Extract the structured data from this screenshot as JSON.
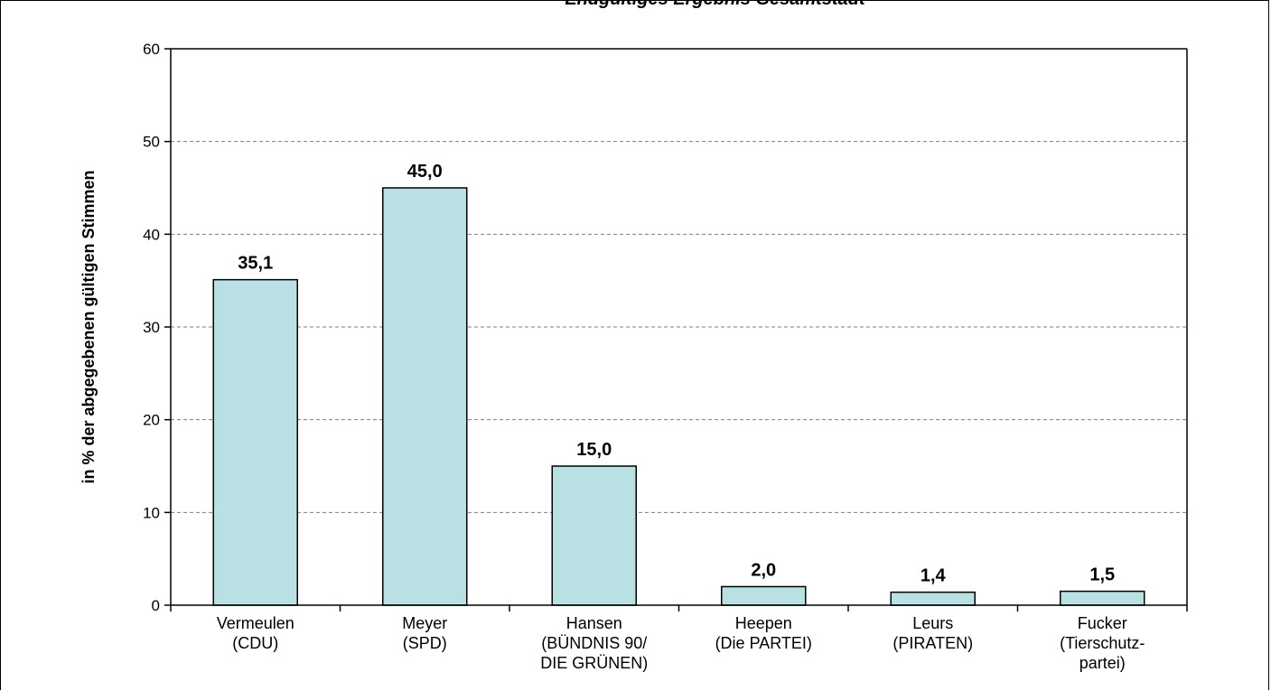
{
  "chart_data": {
    "type": "bar",
    "title": "Endgültiges Ergebnis Gesamtstadt",
    "ylabel": "in % der abgegebenen gültigen Stimmen",
    "xlabel": "",
    "ylim": [
      0,
      60
    ],
    "yticks": [
      0,
      10,
      20,
      30,
      40,
      50,
      60
    ],
    "grid": true,
    "legend": "none",
    "bar_color": "#b9e0e3",
    "categories": [
      [
        "Vermeulen",
        "(CDU)"
      ],
      [
        "Meyer",
        "(SPD)"
      ],
      [
        "Hansen",
        "(BÜNDNIS 90/",
        "DIE GRÜNEN)"
      ],
      [
        "Heepen",
        "(Die PARTEI)"
      ],
      [
        "Leurs",
        "(PIRATEN)"
      ],
      [
        "Fucker",
        "(Tierschutz-",
        "partei)"
      ]
    ],
    "values": [
      35.1,
      45.0,
      15.0,
      2.0,
      1.4,
      1.5
    ],
    "data_labels": [
      "35,1",
      "45,0",
      "15,0",
      "2,0",
      "1,4",
      "1,5"
    ]
  }
}
